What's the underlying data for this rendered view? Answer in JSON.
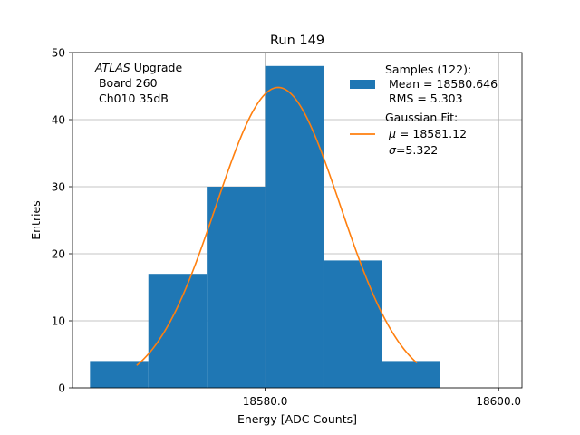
{
  "chart_data": {
    "type": "bar",
    "title": "Run 149",
    "xlabel": "Energy [ADC Counts]",
    "ylabel": "Entries",
    "xlim": [
      18563.5,
      18602
    ],
    "ylim": [
      0,
      50
    ],
    "xticks": [
      18580.0,
      18600.0
    ],
    "xtick_labels": [
      "18580.0",
      "18600.0"
    ],
    "yticks": [
      0,
      10,
      20,
      30,
      40,
      50
    ],
    "grid": true,
    "annotation": {
      "atlas": "ATLAS",
      "line1_rest": " Upgrade",
      "line2": " Board 260",
      "line3": " Ch010 35dB"
    },
    "histogram": {
      "bins": [
        {
          "x0": 18565,
          "x1": 18570,
          "count": 4
        },
        {
          "x0": 18570,
          "x1": 18575,
          "count": 17
        },
        {
          "x0": 18575,
          "x1": 18580,
          "count": 30
        },
        {
          "x0": 18580,
          "x1": 18585,
          "count": 48
        },
        {
          "x0": 18585,
          "x1": 18590,
          "count": 19
        },
        {
          "x0": 18590,
          "x1": 18595,
          "count": 4
        }
      ],
      "color": "#1f77b4"
    },
    "fit": {
      "mu": 18581.12,
      "sigma": 5.322,
      "amplitude": 44.8,
      "x_range": [
        18569,
        18593
      ],
      "color": "#ff7f0e"
    },
    "legend": {
      "placement": "top-right",
      "samples_line1": "Samples (122):",
      "samples_line2": " Mean = 18580.646",
      "samples_line3": " RMS = 5.303",
      "fit_line1": "Gaussian Fit:",
      "fit_mu_symbol": "μ",
      "fit_mu_value": " = 18581.12",
      "fit_sigma_symbol": "σ",
      "fit_sigma_value": "=5.322"
    }
  }
}
